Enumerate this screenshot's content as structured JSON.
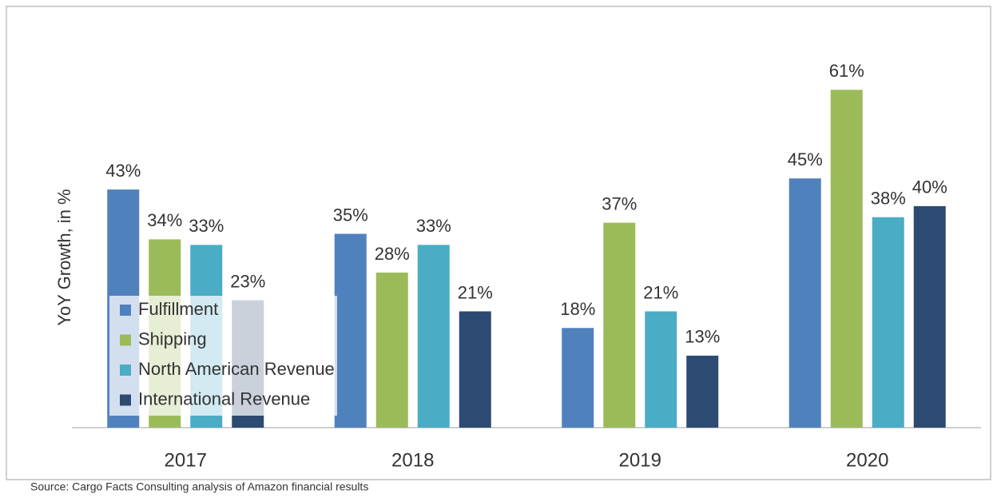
{
  "chart_data": {
    "type": "bar",
    "ylabel": "YoY Growth, in %",
    "source": "Source: Cargo Facts Consulting analysis of Amazon financial results",
    "categories": [
      "2017",
      "2018",
      "2019",
      "2020"
    ],
    "series": [
      {
        "name": "Fulfillment",
        "color": "#4f81bd",
        "values": [
          43,
          35,
          18,
          45
        ],
        "value_labels": [
          "43%",
          "35%",
          "18%",
          "45%"
        ]
      },
      {
        "name": "Shipping",
        "color": "#9bbb59",
        "values": [
          34,
          28,
          37,
          61
        ],
        "value_labels": [
          "34%",
          "28%",
          "37%",
          "61%"
        ]
      },
      {
        "name": "North American Revenue",
        "color": "#4bacc6",
        "values": [
          33,
          33,
          21,
          38
        ],
        "value_labels": [
          "33%",
          "33%",
          "21%",
          "38%"
        ]
      },
      {
        "name": "International Revenue",
        "color": "#2c4a72",
        "values": [
          23,
          21,
          13,
          40
        ],
        "value_labels": [
          "23%",
          "21%",
          "13%",
          "40%"
        ]
      }
    ],
    "ylim": [
      0,
      70
    ],
    "legend": "left"
  }
}
